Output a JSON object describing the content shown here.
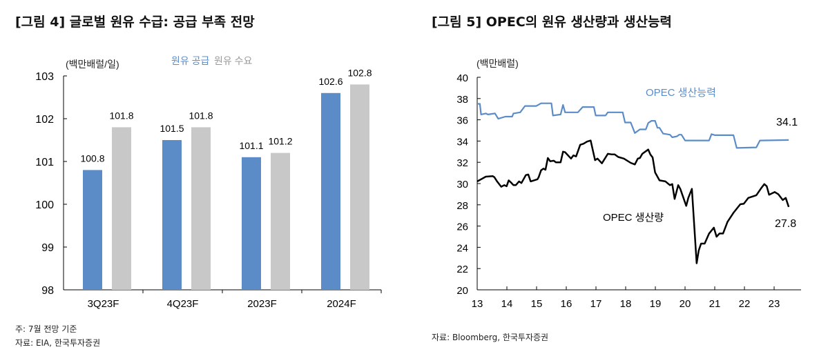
{
  "left": {
    "title": "[그림 4] 글로벌 원유 수급: 공급 부족 전망",
    "footnote": "주: 7월 전망 기준",
    "source": "자료: EIA, 한국투자증권"
  },
  "right": {
    "title": "[그림 5] OPEC의 원유 생산량과 생산능력",
    "source": "자료: Bloomberg, 한국투자증권"
  },
  "chart_data": [
    {
      "type": "bar",
      "unit": "(백만배럴/일)",
      "categories": [
        "3Q23F",
        "4Q23F",
        "2023F",
        "2024F"
      ],
      "series": [
        {
          "name": "원유 공급",
          "color": "#5b8cc8",
          "values": [
            100.8,
            101.5,
            101.1,
            102.6
          ]
        },
        {
          "name": "원유 수요",
          "color": "#c8c8c8",
          "values": [
            101.8,
            101.8,
            101.2,
            102.8
          ]
        }
      ],
      "ylim": [
        98,
        103
      ],
      "yticks": [
        98,
        99,
        100,
        101,
        102,
        103
      ],
      "legend": "top",
      "grid": false
    },
    {
      "type": "line",
      "unit": "(백만배럴)",
      "xlim": [
        13,
        24
      ],
      "xticks": [
        13,
        14,
        15,
        16,
        17,
        18,
        19,
        20,
        21,
        22,
        23
      ],
      "ylim": [
        20,
        40
      ],
      "yticks": [
        20,
        22,
        24,
        26,
        28,
        30,
        32,
        34,
        36,
        38,
        40
      ],
      "grid": false,
      "series": [
        {
          "name": "OPEC 생산능력",
          "color": "#5b8cc8",
          "end_label": "34.1",
          "x": [
            13.0,
            13.09,
            13.13,
            13.29,
            13.36,
            13.6,
            13.71,
            13.95,
            14.18,
            14.22,
            14.45,
            14.61,
            14.99,
            15.15,
            15.5,
            15.55,
            15.81,
            15.89,
            15.96,
            16.39,
            16.55,
            16.93,
            16.99,
            17.32,
            17.4,
            17.9,
            17.98,
            18.17,
            18.31,
            18.48,
            18.68,
            18.76,
            18.87,
            18.99,
            19.07,
            19.14,
            19.26,
            19.49,
            19.57,
            19.73,
            19.8,
            19.88,
            20.0,
            20.81,
            20.89,
            21.01,
            21.63,
            21.74,
            22.4,
            22.52,
            23.49
          ],
          "y": [
            37.5,
            37.5,
            36.5,
            36.6,
            36.5,
            36.6,
            36.1,
            36.3,
            36.3,
            36.6,
            36.7,
            37.3,
            37.3,
            37.55,
            37.55,
            36.4,
            36.5,
            37.4,
            36.7,
            36.7,
            37.2,
            37.2,
            36.4,
            36.4,
            36.7,
            36.7,
            35.75,
            35.75,
            34.75,
            35.1,
            35.1,
            35.7,
            35.9,
            35.9,
            35.25,
            35.25,
            34.7,
            34.6,
            34.35,
            34.45,
            34.6,
            34.6,
            34.05,
            34.05,
            34.65,
            34.55,
            34.55,
            33.35,
            33.4,
            34.05,
            34.1
          ]
        },
        {
          "name": "OPEC 생산량",
          "color": "#000000",
          "end_label": "27.8",
          "x": [
            13.0,
            13.13,
            13.29,
            13.52,
            13.58,
            13.67,
            13.81,
            13.91,
            13.99,
            14.06,
            14.14,
            14.22,
            14.3,
            14.41,
            14.49,
            14.64,
            14.72,
            14.8,
            15.03,
            15.07,
            15.15,
            15.23,
            15.3,
            15.38,
            15.46,
            15.58,
            15.65,
            15.81,
            15.89,
            15.96,
            16.16,
            16.24,
            16.33,
            16.47,
            16.58,
            16.7,
            16.82,
            16.97,
            17.05,
            17.2,
            17.4,
            17.52,
            17.63,
            17.75,
            17.94,
            18.17,
            18.31,
            18.41,
            18.48,
            18.56,
            18.76,
            18.83,
            18.91,
            18.99,
            19.14,
            19.34,
            19.49,
            19.57,
            19.65,
            19.77,
            19.84,
            20.04,
            20.11,
            20.23,
            20.39,
            20.46,
            20.54,
            20.66,
            20.81,
            20.97,
            21.06,
            21.16,
            21.28,
            21.43,
            21.63,
            21.86,
            21.98,
            22.13,
            22.4,
            22.56,
            22.67,
            22.75,
            22.83,
            23.02,
            23.14,
            23.29,
            23.39,
            23.49
          ],
          "y": [
            30.2,
            30.4,
            30.65,
            30.7,
            30.6,
            30.2,
            29.7,
            29.85,
            29.75,
            30.3,
            30.1,
            29.85,
            29.85,
            30.2,
            30.05,
            30.8,
            30.85,
            30.2,
            30.4,
            30.6,
            31.25,
            31.4,
            31.3,
            32.4,
            32.1,
            32.15,
            32.0,
            32.0,
            33.0,
            32.95,
            32.35,
            32.65,
            32.55,
            33.65,
            33.75,
            33.95,
            34.05,
            32.2,
            32.35,
            31.9,
            32.8,
            32.75,
            32.75,
            32.5,
            32.35,
            31.95,
            31.8,
            32.35,
            32.4,
            32.8,
            33.2,
            32.75,
            32.45,
            31.05,
            30.3,
            30.2,
            29.85,
            29.95,
            28.55,
            29.85,
            29.5,
            27.9,
            28.65,
            29.5,
            22.5,
            23.7,
            24.35,
            24.35,
            25.3,
            25.85,
            25.0,
            25.3,
            25.3,
            26.4,
            27.25,
            28.05,
            28.1,
            28.65,
            28.9,
            29.55,
            29.95,
            29.75,
            28.95,
            29.2,
            29.0,
            28.45,
            28.65,
            27.8
          ]
        }
      ]
    }
  ]
}
